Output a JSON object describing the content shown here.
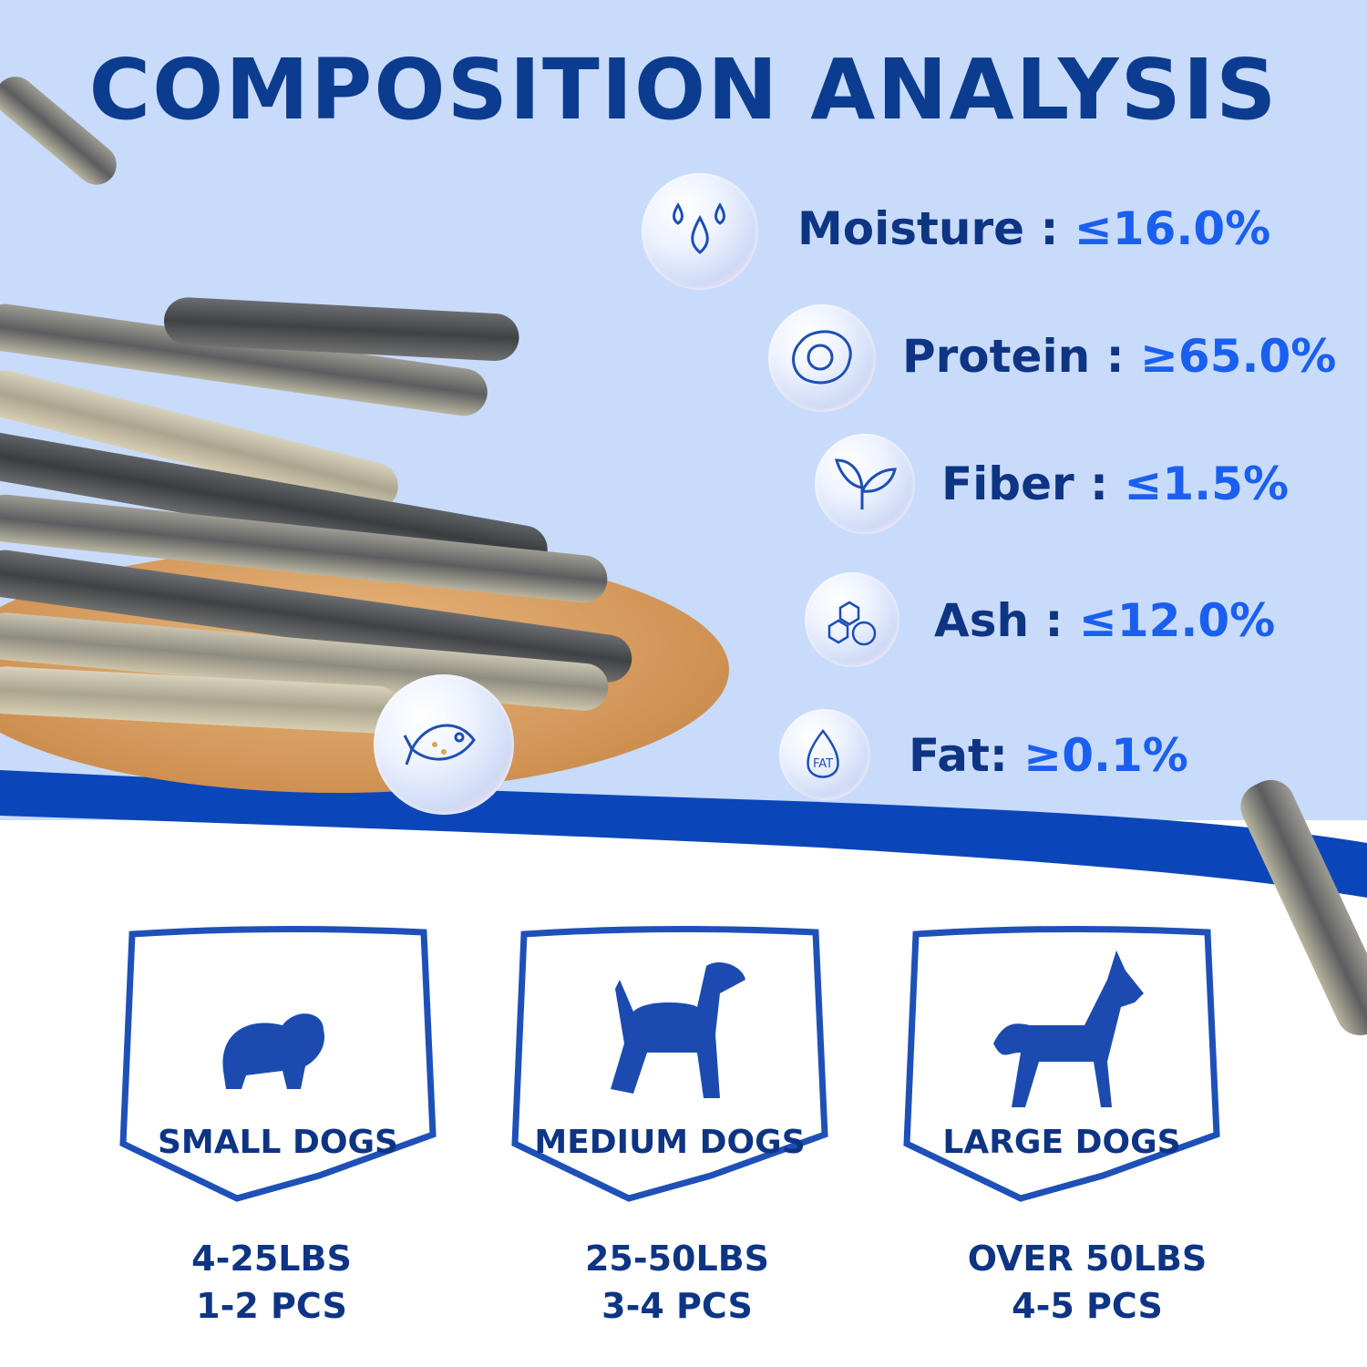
{
  "title": "COMPOSITION ANALYSIS",
  "colors": {
    "background_top": "#c8dbfb",
    "band": "#0b46b9",
    "label": "#0e3484",
    "value": "#1a5ff0"
  },
  "nutrients": [
    {
      "icon": "water-drops-icon",
      "label": "Moisture :",
      "value": "≤16.0%"
    },
    {
      "icon": "egg-icon",
      "label": "Protein :",
      "value": "≥65.0%"
    },
    {
      "icon": "leaf-sprout-icon",
      "label": "Fiber :",
      "value": "≤1.5%"
    },
    {
      "icon": "molecule-dna-icon",
      "label": "Ash :",
      "value": "≤12.0%"
    },
    {
      "icon": "fat-drop-icon",
      "label": "Fat:",
      "value": "≥0.1%",
      "icon_text": "FAT"
    }
  ],
  "fish_icon": "fish-icon",
  "dogs": [
    {
      "label": "SMALL DOGS",
      "weight": "4-25LBS",
      "pieces": "1-2 PCS",
      "icon": "small-dog-icon"
    },
    {
      "label": "MEDIUM DOGS",
      "weight": "25-50LBS",
      "pieces": "3-4 PCS",
      "icon": "medium-dog-icon"
    },
    {
      "label": "LARGE DOGS",
      "weight": "OVER 50LBS",
      "pieces": "4-5 PCS",
      "icon": "large-dog-icon"
    }
  ]
}
